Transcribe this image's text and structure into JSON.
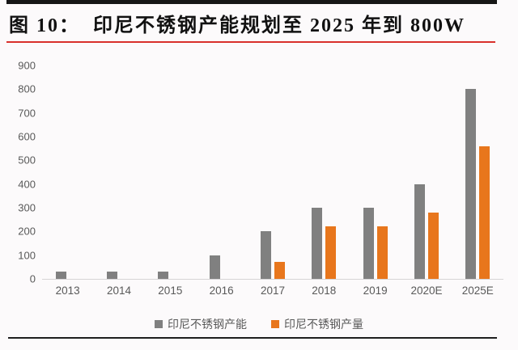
{
  "figure": {
    "title": "图 10：  印尼不锈钢产能规划至 2025 年到 800W"
  },
  "colors": {
    "background": "#FCFAFB",
    "top_rule": "#161616",
    "title_text": "#111111",
    "title_underline": "#D9302C",
    "axis_line": "#D6D4D6",
    "tick_text": "#595959",
    "bottom_rule": "#1E1E1E"
  },
  "chart_data": {
    "type": "bar",
    "title": "印尼不锈钢产能规划至 2025 年到 800W",
    "categories": [
      "2013",
      "2014",
      "2015",
      "2016",
      "2017",
      "2018",
      "2019",
      "2020E",
      "2025E"
    ],
    "series": [
      {
        "name": "印尼不锈钢产能",
        "color": "#808080",
        "values": [
          30,
          30,
          30,
          100,
          200,
          300,
          300,
          400,
          800
        ]
      },
      {
        "name": "印尼不锈钢产量",
        "color": "#E8761C",
        "values": [
          null,
          null,
          null,
          null,
          70,
          220,
          220,
          280,
          560
        ]
      }
    ],
    "xlabel": "",
    "ylabel": "",
    "ylim": [
      0,
      900
    ],
    "yticks": [
      0,
      100,
      200,
      300,
      400,
      500,
      600,
      700,
      800,
      900
    ],
    "grid": false,
    "legend_position": "bottom"
  }
}
